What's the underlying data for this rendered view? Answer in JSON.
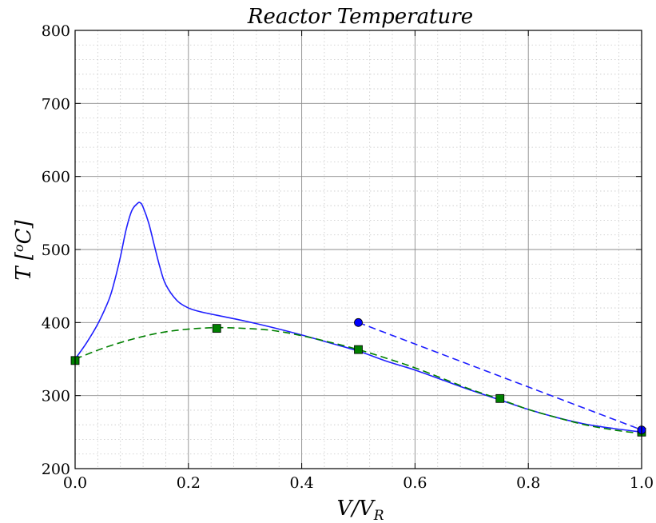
{
  "chart_data": {
    "type": "line",
    "title": "Reactor Temperature",
    "xlabel": {
      "base": "V/V",
      "sub": "R"
    },
    "ylabel": {
      "base": "T [",
      "sup": "o",
      "unit": "C]"
    },
    "xlim": [
      0.0,
      1.0
    ],
    "ylim": [
      200,
      800
    ],
    "xticks": [
      0.0,
      0.2,
      0.4,
      0.6,
      0.8,
      1.0
    ],
    "xtick_labels": [
      "0.0",
      "0.2",
      "0.4",
      "0.6",
      "0.8",
      "1.0"
    ],
    "yticks": [
      200,
      300,
      400,
      500,
      600,
      700,
      800
    ],
    "ytick_labels": [
      "200",
      "300",
      "400",
      "500",
      "600",
      "700",
      "800"
    ],
    "grid": {
      "major": true,
      "minor": true
    },
    "series": [
      {
        "style": "solid",
        "color": "#1f1fff",
        "x": [
          0.0,
          0.02,
          0.04,
          0.06,
          0.07,
          0.08,
          0.09,
          0.1,
          0.11,
          0.115,
          0.12,
          0.13,
          0.14,
          0.15,
          0.16,
          0.18,
          0.2,
          0.22,
          0.25,
          0.3,
          0.35,
          0.4,
          0.45,
          0.5,
          0.55,
          0.6,
          0.65,
          0.7,
          0.75,
          0.8,
          0.85,
          0.9,
          0.95,
          1.0
        ],
        "y": [
          350,
          372,
          398,
          432,
          458,
          490,
          527,
          553,
          563,
          564,
          558,
          536,
          505,
          475,
          452,
          430,
          420,
          415,
          410,
          402,
          393,
          383,
          372,
          361,
          347,
          335,
          321,
          307,
          294,
          281,
          270,
          261,
          255,
          250
        ]
      },
      {
        "style": "dashed",
        "color": "#008000",
        "x": [
          0.0,
          0.05,
          0.1,
          0.15,
          0.2,
          0.25,
          0.3,
          0.35,
          0.4,
          0.45,
          0.5,
          0.55,
          0.6,
          0.65,
          0.7,
          0.75,
          0.8,
          0.85,
          0.9,
          0.95,
          1.0
        ],
        "y": [
          350,
          365,
          377,
          386,
          391,
          393,
          392,
          389,
          382,
          373,
          363,
          351,
          338,
          323,
          308,
          295,
          281,
          270,
          260,
          253,
          248
        ]
      },
      {
        "style": "markers",
        "marker": "square",
        "color": "#008000",
        "x": [
          0.0,
          0.25,
          0.5,
          0.75,
          1.0
        ],
        "y": [
          348,
          392,
          363,
          296,
          250
        ]
      },
      {
        "style": "dashed",
        "color": "#1f1fff",
        "x": [
          0.5,
          1.0
        ],
        "y": [
          400,
          253
        ]
      },
      {
        "style": "markers",
        "marker": "circle",
        "color": "#0000ff",
        "x": [
          0.5,
          1.0
        ],
        "y": [
          400,
          253
        ]
      }
    ]
  }
}
